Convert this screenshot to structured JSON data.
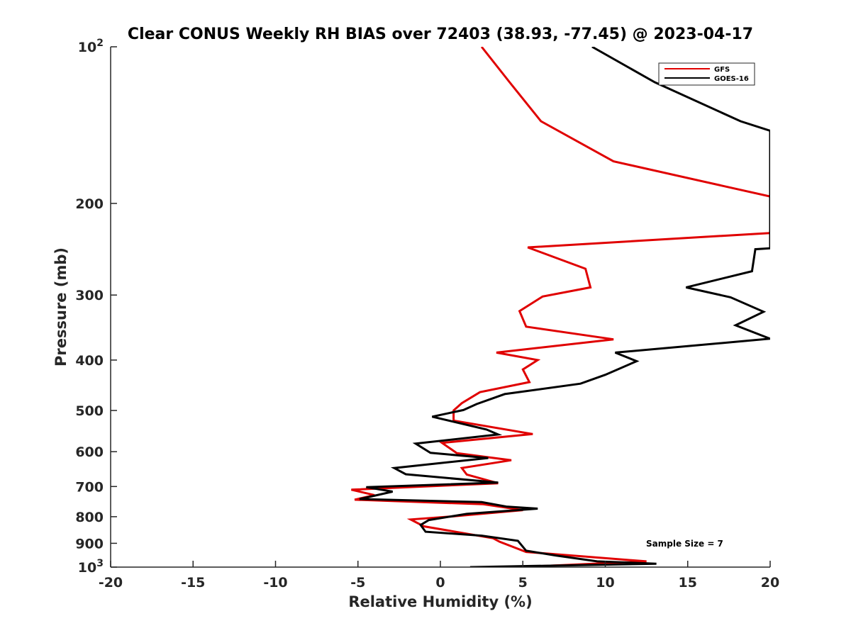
{
  "chart_data": {
    "type": "line",
    "title": "Clear CONUS Weekly RH BIAS over 72403 (38.93, -77.45) @ 2023-04-17",
    "xlabel": "Relative Humidity (%)",
    "ylabel": "Pressure (mb)",
    "xlim": [
      -20,
      20
    ],
    "ylim": [
      100,
      1000
    ],
    "y_scale": "log",
    "y_reversed": true,
    "grid": false,
    "legend_position": "top-right",
    "x_ticks": [
      -20,
      -15,
      -10,
      -5,
      0,
      5,
      10,
      15,
      20
    ],
    "x_tick_labels": [
      "-20",
      "-15",
      "-10",
      "-5",
      "0",
      "5",
      "10",
      "15",
      "20"
    ],
    "y_ticks": [
      {
        "value": 100,
        "base": "10",
        "exp": "2"
      },
      {
        "value": 200,
        "label": "200"
      },
      {
        "value": 300,
        "label": "300"
      },
      {
        "value": 400,
        "label": "400"
      },
      {
        "value": 500,
        "label": "500"
      },
      {
        "value": 600,
        "label": "600"
      },
      {
        "value": 700,
        "label": "700"
      },
      {
        "value": 800,
        "label": "800"
      },
      {
        "value": 900,
        "label": "900"
      },
      {
        "value": 1000,
        "base": "10",
        "exp": "3"
      }
    ],
    "annotation": "Sample Size = 7",
    "series": [
      {
        "name": "GFS",
        "color": "#e00000",
        "points": [
          [
            2.5,
            100
          ],
          [
            4.2,
            117
          ],
          [
            6.1,
            139
          ],
          [
            10.5,
            166
          ],
          [
            20,
            194
          ],
          [
            20,
            228
          ],
          [
            5.3,
            243
          ],
          [
            8.8,
            267
          ],
          [
            9.1,
            290
          ],
          [
            6.2,
            302
          ],
          [
            4.8,
            322
          ],
          [
            5.2,
            345
          ],
          [
            10.5,
            365
          ],
          [
            3.4,
            387
          ],
          [
            5.9,
            400
          ],
          [
            5.0,
            417
          ],
          [
            5.4,
            441
          ],
          [
            2.4,
            461
          ],
          [
            1.3,
            484
          ],
          [
            0.8,
            500
          ],
          [
            0.8,
            523
          ],
          [
            5.6,
            555
          ],
          [
            0.1,
            577
          ],
          [
            1.0,
            604
          ],
          [
            4.3,
            623
          ],
          [
            1.3,
            645
          ],
          [
            1.6,
            664
          ],
          [
            3.5,
            690
          ],
          [
            -5.4,
            710
          ],
          [
            -4.0,
            727
          ],
          [
            -5.2,
            742
          ],
          [
            2.6,
            757
          ],
          [
            5.0,
            777
          ],
          [
            0.5,
            800
          ],
          [
            -1.8,
            810
          ],
          [
            -1.0,
            835
          ],
          [
            3.2,
            880
          ],
          [
            3.6,
            894
          ],
          [
            5.2,
            935
          ],
          [
            12.5,
            975
          ],
          [
            4.7,
            1000
          ]
        ]
      },
      {
        "name": "GOES-16",
        "color": "#000000",
        "points": [
          [
            9.2,
            100
          ],
          [
            13.0,
            117
          ],
          [
            18.2,
            139
          ],
          [
            20,
            145
          ],
          [
            20,
            244
          ],
          [
            19.1,
            245
          ],
          [
            18.9,
            270
          ],
          [
            14.9,
            290
          ],
          [
            17.6,
            303
          ],
          [
            19.6,
            323
          ],
          [
            17.9,
            343
          ],
          [
            20,
            364
          ],
          [
            10.6,
            387
          ],
          [
            11.9,
            402
          ],
          [
            10.0,
            427
          ],
          [
            8.5,
            444
          ],
          [
            3.9,
            465
          ],
          [
            2.2,
            486
          ],
          [
            1.4,
            499
          ],
          [
            -0.5,
            514
          ],
          [
            2.8,
            544
          ],
          [
            3.5,
            556
          ],
          [
            -1.5,
            579
          ],
          [
            -0.6,
            603
          ],
          [
            2.9,
            617
          ],
          [
            -2.8,
            645
          ],
          [
            -2.1,
            663
          ],
          [
            3.5,
            688
          ],
          [
            -4.5,
            702
          ],
          [
            -2.9,
            716
          ],
          [
            -4.9,
            740
          ],
          [
            2.5,
            750
          ],
          [
            4.0,
            765
          ],
          [
            5.9,
            772
          ],
          [
            1.6,
            790
          ],
          [
            -0.7,
            812
          ],
          [
            -1.2,
            830
          ],
          [
            -0.9,
            855
          ],
          [
            2.5,
            870
          ],
          [
            4.7,
            890
          ],
          [
            5.2,
            930
          ],
          [
            7.0,
            950
          ],
          [
            9.5,
            975
          ],
          [
            13.1,
            985
          ],
          [
            1.8,
            1000
          ]
        ]
      }
    ]
  }
}
